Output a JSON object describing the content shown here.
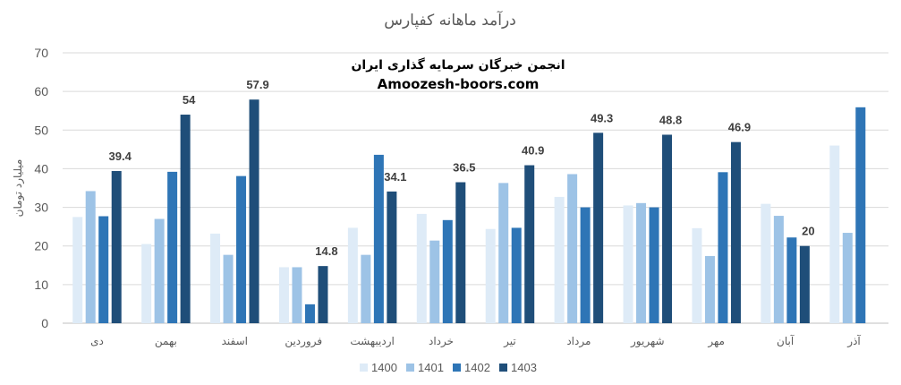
{
  "chart_data": {
    "type": "bar",
    "title": "درآمد ماهانه کفپارس",
    "ylabel": "میلیارد تومان",
    "xlabel": "",
    "ylim": [
      0,
      70
    ],
    "yticks": [
      0,
      10,
      20,
      30,
      40,
      50,
      60,
      70
    ],
    "grid": true,
    "legend_position": "bottom",
    "annotations": [
      "انجمن خبرگان سرمایه گذاری ایران",
      "Amoozesh-boors.com"
    ],
    "categories": [
      "دی",
      "بهمن",
      "اسفند",
      "فروردین",
      "اردیبهشت",
      "خرداد",
      "تیر",
      "مرداد",
      "شهریور",
      "مهر",
      "آبان",
      "آذر"
    ],
    "series": [
      {
        "name": "1400",
        "color": "#deebf7",
        "values": [
          27.5,
          20.5,
          23.2,
          14.5,
          24.7,
          28.3,
          24.4,
          32.7,
          30.5,
          24.6,
          30.9,
          46.0
        ]
      },
      {
        "name": "1401",
        "color": "#9dc3e6",
        "values": [
          34.2,
          27.0,
          17.7,
          14.5,
          17.7,
          21.4,
          36.3,
          38.6,
          31.1,
          17.4,
          27.8,
          23.4
        ]
      },
      {
        "name": "1402",
        "color": "#2e75b6",
        "values": [
          27.7,
          39.2,
          38.1,
          4.9,
          43.6,
          26.7,
          24.7,
          30.0,
          30.0,
          39.1,
          22.2,
          55.9
        ]
      },
      {
        "name": "1403",
        "color": "#1f4e79",
        "values": [
          39.4,
          54,
          57.9,
          14.8,
          34.1,
          36.5,
          40.9,
          49.3,
          48.8,
          46.9,
          20,
          null
        ]
      }
    ],
    "data_labels": {
      "series": "1403",
      "values": [
        "39.4",
        "54",
        "57.9",
        "14.8",
        "34.1",
        "36.5",
        "40.9",
        "49.3",
        "48.8",
        "46.9",
        "20",
        ""
      ]
    }
  }
}
